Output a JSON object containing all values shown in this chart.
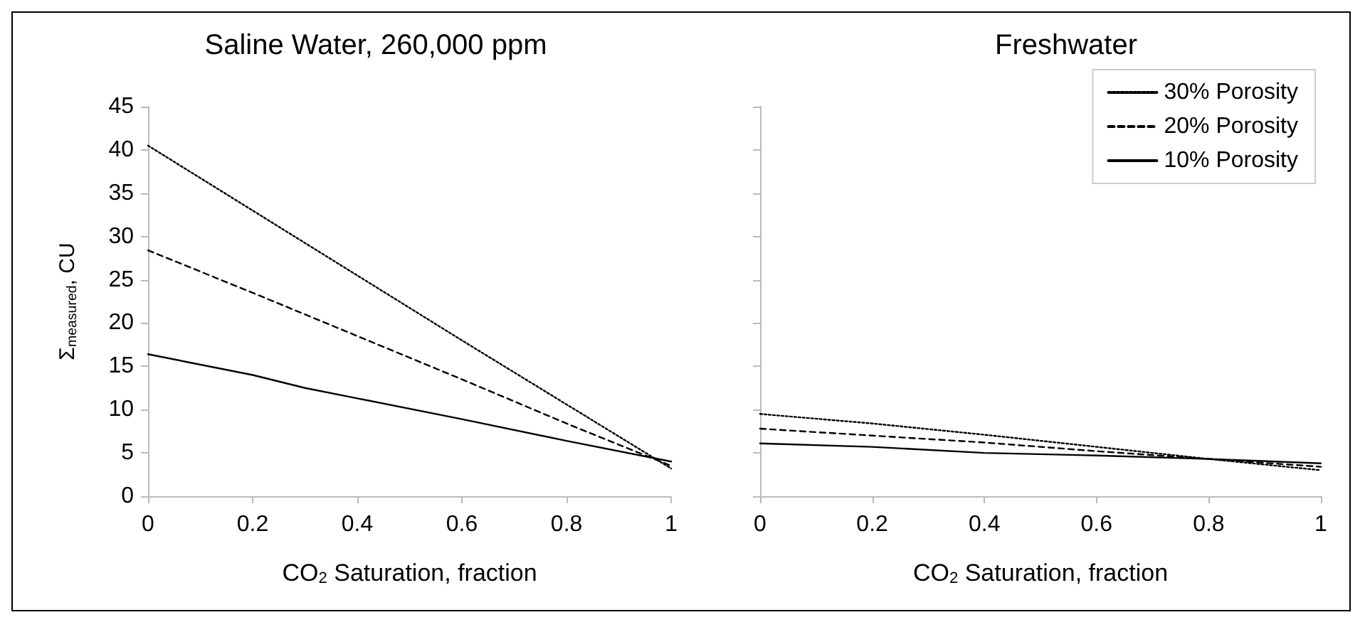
{
  "chart_data": [
    {
      "type": "line",
      "title": "Saline Water, 260,000 ppm",
      "xlabel": "CO$_{2}$ Saturation, fraction",
      "ylabel": "Σ$_{measured}$, CU",
      "xlim": [
        0,
        1
      ],
      "xticks": [
        0,
        0.2,
        0.4,
        0.6,
        0.8,
        1
      ],
      "ylim": [
        0,
        45
      ],
      "yticks": [
        0,
        5,
        10,
        15,
        20,
        25,
        30,
        35,
        40,
        45
      ],
      "grid": false,
      "legend": false,
      "marker": "none",
      "series": [
        {
          "color": "#000000",
          "line_style": "dotted",
          "x": [
            0,
            0.2,
            0.4,
            0.6,
            0.8,
            1
          ],
          "values": [
            40.5,
            33,
            25.5,
            18,
            10.6,
            3.2
          ]
        },
        {
          "color": "#000000",
          "line_style": "dashed",
          "x": [
            0,
            0.2,
            0.4,
            0.6,
            0.8,
            1
          ],
          "values": [
            28.4,
            23.5,
            18.5,
            13.5,
            8.4,
            3.5
          ]
        },
        {
          "color": "#000000",
          "line_style": "solid",
          "x": [
            0,
            0.2,
            0.3,
            0.4,
            0.6,
            0.8,
            1
          ],
          "values": [
            16.4,
            14,
            12.5,
            11.3,
            8.9,
            6.4,
            4
          ]
        }
      ]
    },
    {
      "type": "line",
      "title": "Freshwater",
      "xlabel": "CO$_{2}$ Saturation, fraction",
      "xlim": [
        0,
        1
      ],
      "xticks": [
        0,
        0.2,
        0.4,
        0.6,
        0.8,
        1
      ],
      "ylim": [
        0,
        45
      ],
      "yticks": [
        0,
        5,
        10,
        15,
        20,
        25,
        30,
        35,
        40,
        45
      ],
      "tick_labels": "x",
      "grid": false,
      "legend": "top right",
      "marker": "none",
      "series": [
        {
          "name": "30% Porosity",
          "color": "#000000",
          "line_style": "dotted",
          "x": [
            0,
            0.2,
            0.4,
            0.6,
            0.8,
            1
          ],
          "values": [
            9.5,
            8.4,
            7.1,
            5.7,
            4.3,
            3
          ]
        },
        {
          "name": "20% Porosity",
          "color": "#000000",
          "line_style": "dashed",
          "x": [
            0,
            0.2,
            0.4,
            0.6,
            0.8,
            1
          ],
          "values": [
            7.8,
            7,
            6.2,
            5.2,
            4.3,
            3.4
          ]
        },
        {
          "name": "10% Porosity",
          "color": "#000000",
          "line_style": "solid",
          "x": [
            0,
            0.2,
            0.4,
            0.6,
            0.8,
            1
          ],
          "values": [
            6.1,
            5.7,
            5,
            4.7,
            4.3,
            3.8
          ]
        }
      ]
    }
  ]
}
